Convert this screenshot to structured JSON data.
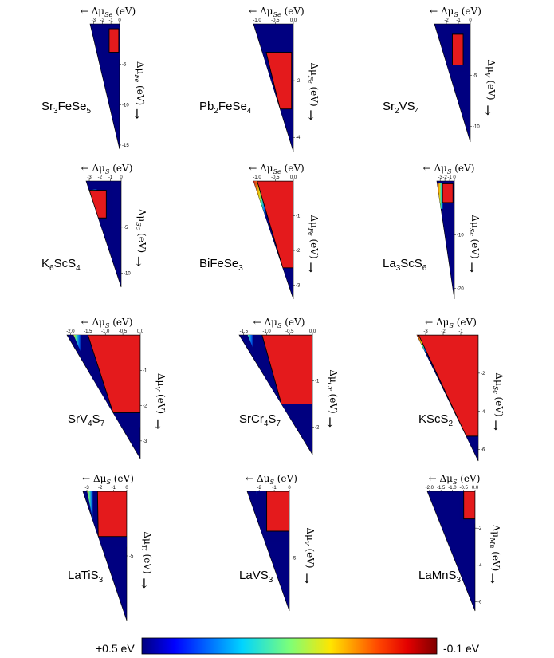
{
  "chart_data": [
    {
      "type": "heatmap",
      "compound": {
        "base": "Sr",
        "parts": [
          [
            "Sr",
            "3"
          ],
          [
            "Fe",
            ""
          ],
          [
            "Se",
            "5"
          ]
        ]
      },
      "x_axis": {
        "arrow": "←",
        "symbol": "Δμ",
        "subscript": "Se",
        "unit": "(eV)",
        "ticks": [
          "-3",
          "-2",
          "-1",
          "0"
        ],
        "xlim": [
          -3.4,
          0
        ]
      },
      "y_axis": {
        "arrow": "↓",
        "symbol": "Δμ",
        "subscript": "Fe",
        "unit": "(eV)",
        "ticks": [
          "-5",
          "-10",
          "-15"
        ],
        "ylim": [
          -15.5,
          0
        ]
      },
      "stable_region": {
        "x": [
          -1.2,
          -0.1
        ],
        "y": [
          -0.6,
          -3.5
        ]
      },
      "contour": "black"
    },
    {
      "type": "heatmap",
      "compound": {
        "parts": [
          [
            "Pb",
            "2"
          ],
          [
            "Fe",
            ""
          ],
          [
            "Se",
            "4"
          ]
        ]
      },
      "x_axis": {
        "arrow": "←",
        "symbol": "Δμ",
        "subscript": "Se",
        "unit": "(eV)",
        "ticks": [
          "-1.0",
          "-0.5",
          "0.0"
        ],
        "xlim": [
          -1.1,
          0
        ]
      },
      "y_axis": {
        "arrow": "↓",
        "symbol": "Δμ",
        "subscript": "Fe",
        "unit": "(eV)",
        "ticks": [
          "-2",
          "-4"
        ],
        "ylim": [
          -4.5,
          0
        ]
      },
      "stable_region": {
        "x": [
          -0.75,
          -0.05
        ],
        "y": [
          -1.0,
          -3.0
        ]
      },
      "contour": "black"
    },
    {
      "type": "heatmap",
      "compound": {
        "parts": [
          [
            "Sr",
            "2"
          ],
          [
            "V",
            ""
          ],
          [
            "S",
            "4"
          ]
        ]
      },
      "x_axis": {
        "arrow": "←",
        "symbol": "Δμ",
        "subscript": "S",
        "unit": "(eV)",
        "ticks": [
          "-2",
          "-1",
          "0"
        ],
        "xlim": [
          -3.0,
          0
        ]
      },
      "y_axis": {
        "arrow": "↓",
        "symbol": "Δμ",
        "subscript": "V",
        "unit": "(eV)",
        "ticks": [
          "-5",
          "-10"
        ],
        "ylim": [
          -11.5,
          0
        ]
      },
      "stable_region": {
        "x": [
          -1.5,
          -0.6
        ],
        "y": [
          -1.0,
          -4.0
        ]
      },
      "contour": "black"
    },
    {
      "type": "heatmap",
      "compound": {
        "parts": [
          [
            "K",
            "6"
          ],
          [
            "Sc",
            ""
          ],
          [
            "S",
            "4"
          ]
        ]
      },
      "x_axis": {
        "arrow": "←",
        "symbol": "Δμ",
        "subscript": "S",
        "unit": "(eV)",
        "ticks": [
          "-3",
          "-2",
          "-1",
          "0"
        ],
        "xlim": [
          -3.3,
          0
        ]
      },
      "y_axis": {
        "arrow": "↓",
        "symbol": "Δμ",
        "subscript": "Sc",
        "unit": "(eV)",
        "ticks": [
          "-5",
          "-10"
        ],
        "ylim": [
          -11.5,
          0
        ]
      },
      "stable_region": {
        "x": [
          -3.0,
          -1.4
        ],
        "y": [
          -1.0,
          -4.0
        ]
      },
      "contour": "black"
    },
    {
      "type": "heatmap",
      "compound": {
        "parts": [
          [
            "Bi",
            ""
          ],
          [
            "Fe",
            ""
          ],
          [
            "Se",
            "3"
          ]
        ]
      },
      "x_axis": {
        "arrow": "←",
        "symbol": "Δμ",
        "subscript": "Se",
        "unit": "(eV)",
        "ticks": [
          "-1.0",
          "-0.5",
          "0.0"
        ],
        "xlim": [
          -1.1,
          0
        ]
      },
      "y_axis": {
        "arrow": "↓",
        "symbol": "Δμ",
        "subscript": "Fe",
        "unit": "(eV)",
        "ticks": [
          "-1",
          "-2",
          "-3"
        ],
        "ylim": [
          -3.4,
          0
        ]
      },
      "stable_region": {
        "x": [
          -1.0,
          0
        ],
        "y": [
          0,
          -2.5
        ]
      },
      "contour": "black"
    },
    {
      "type": "heatmap",
      "compound": {
        "parts": [
          [
            "La",
            "3"
          ],
          [
            "Sc",
            ""
          ],
          [
            "S",
            "6"
          ]
        ]
      },
      "x_axis": {
        "arrow": "←",
        "symbol": "Δμ",
        "subscript": "S",
        "unit": "(eV)",
        "ticks": [
          "-3",
          "-2",
          "-1",
          "0"
        ],
        "xlim": [
          -3.7,
          0
        ]
      },
      "y_axis": {
        "arrow": "↓",
        "symbol": "Δμ",
        "subscript": "Sc",
        "unit": "(eV)",
        "ticks": [
          "-10",
          "-20"
        ],
        "ylim": [
          -22,
          0
        ]
      },
      "stable_region": {
        "x": [
          -2.5,
          -0.3
        ],
        "y": [
          -0.5,
          -4.0
        ]
      },
      "contour": "black"
    },
    {
      "type": "heatmap",
      "compound": {
        "parts": [
          [
            "Sr",
            ""
          ],
          [
            "V",
            "4"
          ],
          [
            "S",
            "7"
          ]
        ]
      },
      "x_axis": {
        "arrow": "←",
        "symbol": "Δμ",
        "subscript": "S",
        "unit": "(eV)",
        "ticks": [
          "-2.0",
          "-1.5",
          "-1.0",
          "-0.5",
          "0.0"
        ],
        "xlim": [
          -2.1,
          0
        ]
      },
      "y_axis": {
        "arrow": "↓",
        "symbol": "Δμ",
        "subscript": "V",
        "unit": "(eV)",
        "ticks": [
          "-1",
          "-2",
          "-3"
        ],
        "ylim": [
          -3.5,
          0
        ]
      },
      "stable_region": {
        "x": [
          -1.5,
          0
        ],
        "y": [
          0,
          -2.2
        ]
      },
      "contour": "black"
    },
    {
      "type": "heatmap",
      "compound": {
        "parts": [
          [
            "Sr",
            ""
          ],
          [
            "Cr",
            "4"
          ],
          [
            "S",
            "7"
          ]
        ]
      },
      "x_axis": {
        "arrow": "←",
        "symbol": "Δμ",
        "subscript": "S",
        "unit": "(eV)",
        "ticks": [
          "-1.5",
          "-1.0",
          "-0.5",
          "0.0"
        ],
        "xlim": [
          -1.6,
          0
        ]
      },
      "y_axis": {
        "arrow": "↓",
        "symbol": "Δμ",
        "subscript": "Cr",
        "unit": "(eV)",
        "ticks": [
          "-1",
          "-2"
        ],
        "ylim": [
          -2.6,
          0
        ]
      },
      "stable_region": {
        "x": [
          -1.1,
          0
        ],
        "y": [
          0,
          -1.5
        ]
      },
      "contour": "black"
    },
    {
      "type": "heatmap",
      "compound": {
        "parts": [
          [
            "K",
            ""
          ],
          [
            "Sc",
            ""
          ],
          [
            "S",
            "2"
          ]
        ]
      },
      "x_axis": {
        "arrow": "←",
        "symbol": "Δμ",
        "subscript": "S",
        "unit": "(eV)",
        "ticks": [
          "-3",
          "-2",
          "-1"
        ],
        "xlim": [
          -3.5,
          0
        ]
      },
      "y_axis": {
        "arrow": "↓",
        "symbol": "Δμ",
        "subscript": "Sc",
        "unit": "(eV)",
        "ticks": [
          "-2",
          "-4",
          "-6"
        ],
        "ylim": [
          -6.6,
          0
        ]
      },
      "stable_region": {
        "x": [
          -3.4,
          0
        ],
        "y": [
          0,
          -5.3
        ]
      },
      "contour": "black"
    },
    {
      "type": "heatmap",
      "compound": {
        "parts": [
          [
            "La",
            ""
          ],
          [
            "Ti",
            ""
          ],
          [
            "S",
            "3"
          ]
        ]
      },
      "x_axis": {
        "arrow": "←",
        "symbol": "Δμ",
        "subscript": "S",
        "unit": "(eV)",
        "ticks": [
          "-3",
          "-2",
          "-1",
          "0"
        ],
        "xlim": [
          -3.3,
          0
        ]
      },
      "y_axis": {
        "arrow": "↓",
        "symbol": "Δμ",
        "subscript": "Ti",
        "unit": "(eV)",
        "ticks": [
          "-5"
        ],
        "ylim": [
          -10,
          0
        ]
      },
      "stable_region": {
        "x": [
          -2.2,
          0
        ],
        "y": [
          0,
          -3.5
        ]
      },
      "contour": "black"
    },
    {
      "type": "heatmap",
      "compound": {
        "parts": [
          [
            "La",
            ""
          ],
          [
            "V",
            ""
          ],
          [
            "S",
            "3"
          ]
        ]
      },
      "x_axis": {
        "arrow": "←",
        "symbol": "Δμ",
        "subscript": "S",
        "unit": "(eV)",
        "ticks": [
          "-2",
          "-1",
          "0"
        ],
        "xlim": [
          -2.8,
          0
        ]
      },
      "y_axis": {
        "arrow": "↓",
        "symbol": "Δμ",
        "subscript": "V",
        "unit": "(eV)",
        "ticks": [
          "-5"
        ],
        "ylim": [
          -9,
          0
        ]
      },
      "stable_region": {
        "x": [
          -1.5,
          0
        ],
        "y": [
          0,
          -3.0
        ]
      },
      "contour": "black"
    },
    {
      "type": "heatmap",
      "compound": {
        "parts": [
          [
            "La",
            ""
          ],
          [
            "Mn",
            ""
          ],
          [
            "S",
            "3"
          ]
        ]
      },
      "x_axis": {
        "arrow": "←",
        "symbol": "Δμ",
        "subscript": "S",
        "unit": "(eV)",
        "ticks": [
          "-2.0",
          "-1.5",
          "-1.0",
          "-0.5",
          "0.0"
        ],
        "xlim": [
          -2.1,
          0
        ]
      },
      "y_axis": {
        "arrow": "↓",
        "symbol": "Δμ",
        "subscript": "Mn",
        "unit": "(eV)",
        "ticks": [
          "-2",
          "-4",
          "-6"
        ],
        "ylim": [
          -6.5,
          0
        ]
      },
      "stable_region": {
        "x": [
          -0.5,
          0
        ],
        "y": [
          0,
          -1.5
        ]
      },
      "contour": "black"
    }
  ],
  "colorbar": {
    "label_left": "+0.5 eV",
    "label_right": "-0.1 eV",
    "colormap": "jet-reversed",
    "vmin": -0.1,
    "vmax": 0.5
  },
  "colors": {
    "stable": "#e41a1c",
    "background": "#000080",
    "contour": "#000000"
  }
}
